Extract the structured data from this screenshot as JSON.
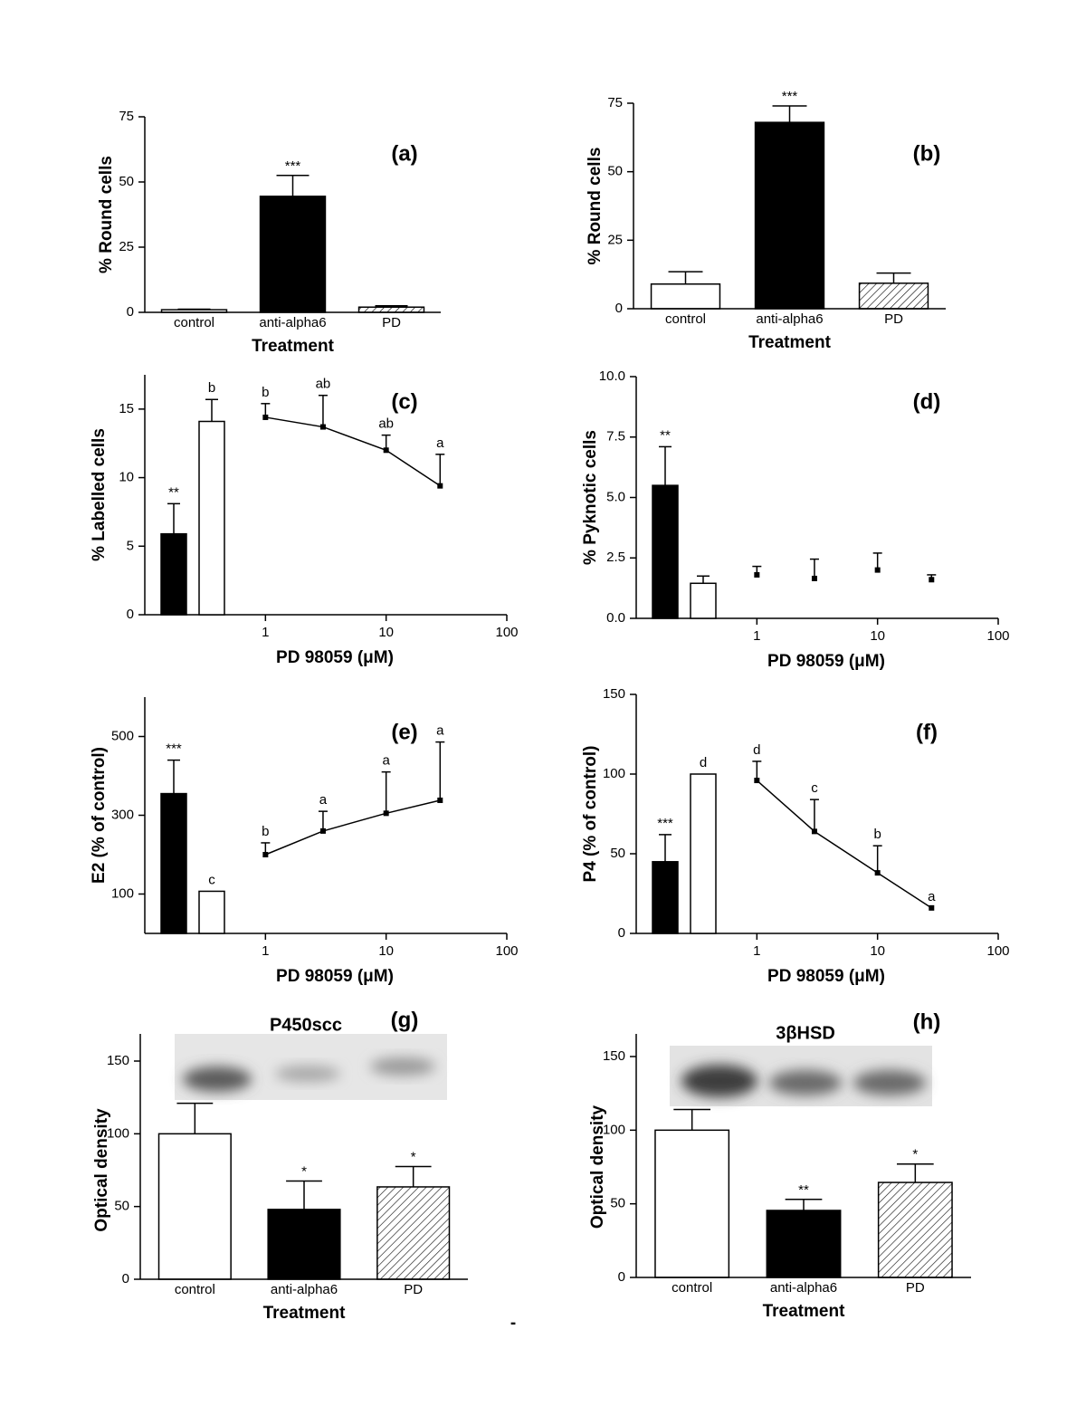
{
  "chart_data": [
    {
      "type": "bar",
      "panel_label": "(a)",
      "ylabel": "% Round cells",
      "xlabel": "Treatment",
      "categories": [
        "control",
        "anti-alpha6",
        "PD"
      ],
      "values": [
        1,
        44.5,
        2
      ],
      "errors": [
        0.2,
        8,
        0.5
      ],
      "fills": [
        "white",
        "black",
        "hatch"
      ],
      "annotations": [
        null,
        "***",
        null
      ],
      "ylim": [
        0,
        75
      ],
      "yticks": [
        0,
        25,
        50,
        75
      ]
    },
    {
      "type": "bar",
      "panel_label": "(b)",
      "ylabel": "% Round cells",
      "xlabel": "Treatment",
      "categories": [
        "control",
        "anti-alpha6",
        "PD"
      ],
      "values": [
        9,
        68,
        9.3
      ],
      "errors": [
        4.5,
        6,
        3.7
      ],
      "fills": [
        "white",
        "black",
        "hatch"
      ],
      "annotations": [
        null,
        "***",
        null
      ],
      "ylim": [
        0,
        75
      ],
      "yticks": [
        0,
        25,
        50,
        75
      ]
    },
    {
      "type": "combo",
      "panel_label": "(c)",
      "ylabel": "% Labelled cells",
      "xlabel": "PD 98059 (μM)",
      "bars": {
        "values": [
          5.9,
          14.1
        ],
        "errors": [
          2.2,
          1.6
        ],
        "fills": [
          "black",
          "white"
        ],
        "annotations": [
          "**",
          "b"
        ]
      },
      "x": [
        1,
        3,
        10,
        28
      ],
      "values": [
        14.4,
        13.7,
        12.0,
        9.4
      ],
      "errors": [
        1.0,
        2.3,
        1.1,
        2.3
      ],
      "annotations": [
        "b",
        "ab",
        "ab",
        "a"
      ],
      "curve": true,
      "xscale": "log",
      "xlim": [
        0.1,
        100
      ],
      "xticks": [
        1,
        10,
        100
      ],
      "ylim": [
        0,
        17.5
      ],
      "yticks": [
        0,
        5,
        10,
        15
      ]
    },
    {
      "type": "combo",
      "panel_label": "(d)",
      "ylabel": "% Pyknotic cells",
      "xlabel": "PD 98059 (μM)",
      "bars": {
        "values": [
          5.5,
          1.45
        ],
        "errors": [
          1.6,
          0.3
        ],
        "fills": [
          "black",
          "white"
        ],
        "annotations": [
          "**",
          null
        ]
      },
      "x": [
        1,
        3,
        10,
        28
      ],
      "values": [
        1.8,
        1.65,
        2.0,
        1.6
      ],
      "errors": [
        0.35,
        0.8,
        0.7,
        0.2
      ],
      "annotations": [
        null,
        null,
        null,
        null
      ],
      "curve": false,
      "xscale": "log",
      "xlim": [
        0.1,
        100
      ],
      "xticks": [
        1,
        10,
        100
      ],
      "ylim": [
        0,
        10
      ],
      "yticks": [
        {
          "value": 0,
          "label": "0.0"
        },
        2.5,
        {
          "value": 5,
          "label": "5.0"
        },
        7.5,
        {
          "value": 10,
          "label": "10.0"
        }
      ]
    },
    {
      "type": "combo",
      "panel_label": "(e)",
      "ylabel": "E2 (% of control)",
      "xlabel": "PD 98059 (μM)",
      "bars": {
        "values": [
          355,
          107
        ],
        "errors": [
          85,
          null
        ],
        "fills": [
          "black",
          "white"
        ],
        "annotations": [
          "***",
          "c"
        ]
      },
      "x": [
        1,
        3,
        10,
        28
      ],
      "values": [
        200,
        260,
        305,
        338
      ],
      "errors": [
        30,
        50,
        105,
        148
      ],
      "annotations": [
        "b",
        "a",
        "a",
        "a"
      ],
      "curve": true,
      "xscale": "log",
      "xlim": [
        0.1,
        100
      ],
      "xticks": [
        1,
        10,
        100
      ],
      "ylim": [
        0,
        600
      ],
      "yticks": [
        100,
        300,
        500
      ]
    },
    {
      "type": "combo",
      "panel_label": "(f)",
      "ylabel": "P4 (% of control)",
      "xlabel": "PD 98059 (μM)",
      "bars": {
        "values": [
          45,
          100
        ],
        "errors": [
          17,
          null
        ],
        "fills": [
          "black",
          "white"
        ],
        "annotations": [
          "***",
          "d"
        ]
      },
      "x": [
        1,
        3,
        10,
        28
      ],
      "values": [
        96,
        64,
        38,
        16
      ],
      "errors": [
        12,
        20,
        17,
        null
      ],
      "annotations": [
        "d",
        "c",
        "b",
        "a"
      ],
      "curve": true,
      "xscale": "log",
      "xlim": [
        0.1,
        100
      ],
      "xticks": [
        1,
        10,
        100
      ],
      "ylim": [
        0,
        150
      ],
      "yticks": [
        0,
        50,
        100,
        150
      ]
    },
    {
      "type": "bar",
      "panel_label": "(g)",
      "title": "P450scc",
      "ylabel": "Optical density",
      "xlabel": "Treatment",
      "categories": [
        "control",
        "anti-alpha6",
        "PD"
      ],
      "values": [
        100,
        48,
        63.5
      ],
      "errors": [
        21,
        19.5,
        14
      ],
      "fills": [
        "white",
        "black",
        "hatch"
      ],
      "annotations": [
        null,
        "*",
        "*"
      ],
      "ylim": [
        0,
        150
      ],
      "yticks": [
        0,
        50,
        100,
        150
      ]
    },
    {
      "type": "bar",
      "panel_label": "(h)",
      "title": "3βHSD",
      "ylabel": "Optical density",
      "xlabel": "Treatment",
      "categories": [
        "control",
        "anti-alpha6",
        "PD"
      ],
      "values": [
        100,
        45.5,
        64.5
      ],
      "errors": [
        14,
        7.5,
        12.5
      ],
      "fills": [
        "white",
        "black",
        "hatch"
      ],
      "annotations": [
        null,
        "**",
        "*"
      ],
      "ylim": [
        0,
        150
      ],
      "yticks": [
        0,
        50,
        100,
        150
      ]
    }
  ],
  "footer_mark": "-"
}
